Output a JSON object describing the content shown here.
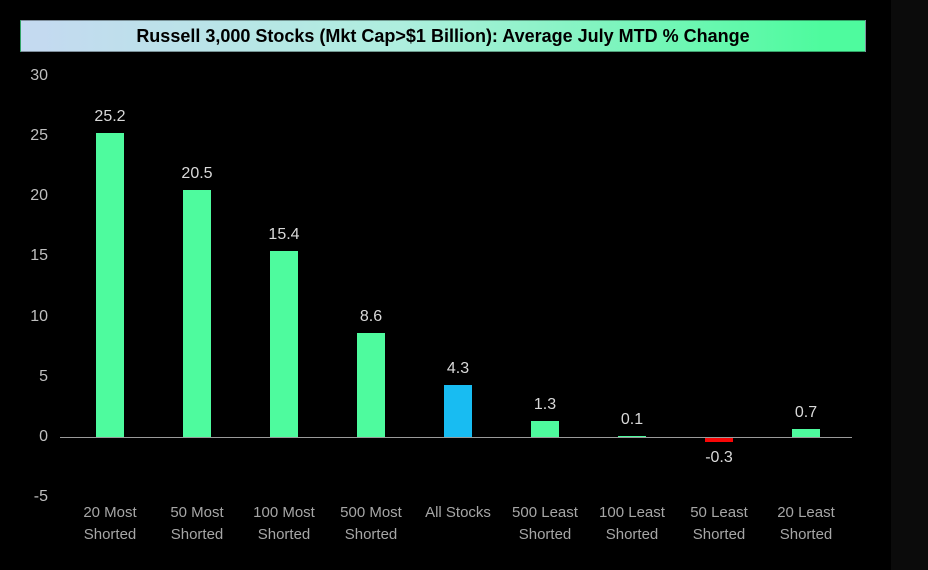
{
  "title": "Russell 3,000 Stocks (Mkt Cap>$1 Billion): Average July MTD % Change",
  "colors": {
    "background": "#000000",
    "slide_background": "#0b0b0b",
    "banner_left": "#c5d9f1",
    "banner_mid": "#aeeede",
    "banner_right": "#4efb9e",
    "title_text": "#000000",
    "green": "#4efb9e",
    "blue": "#18bcf2",
    "red": "#f90606",
    "axis_line": "#9a9a9a",
    "tick_text": "#bfbfbf",
    "value_text": "#d9d9d9",
    "category_text": "#a6a6a6"
  },
  "chart_data": {
    "type": "bar",
    "title": "Russell 3,000 Stocks (Mkt Cap>$1 Billion): Average July MTD % Change",
    "categories": [
      "20 Most Shorted",
      "50 Most Shorted",
      "100 Most Shorted",
      "500 Most Shorted",
      "All Stocks",
      "500 Least Shorted",
      "100 Least Shorted",
      "50 Least Shorted",
      "20 Least Shorted"
    ],
    "category_lines": [
      [
        "20 Most",
        "Shorted"
      ],
      [
        "50 Most",
        "Shorted"
      ],
      [
        "100 Most",
        "Shorted"
      ],
      [
        "500 Most",
        "Shorted"
      ],
      [
        "All Stocks"
      ],
      [
        "500 Least",
        "Shorted"
      ],
      [
        "100 Least",
        "Shorted"
      ],
      [
        "50 Least",
        "Shorted"
      ],
      [
        "20 Least",
        "Shorted"
      ]
    ],
    "values": [
      25.2,
      20.5,
      15.4,
      8.6,
      4.3,
      1.3,
      0.1,
      -0.3,
      0.7
    ],
    "value_labels": [
      "25.2",
      "20.5",
      "15.4",
      "8.6",
      "4.3",
      "1.3",
      "0.1",
      "-0.3",
      "0.7"
    ],
    "bar_colors": [
      "green",
      "green",
      "green",
      "green",
      "blue",
      "green",
      "green",
      "red",
      "green"
    ],
    "xlabel": "",
    "ylabel": "",
    "ylim": [
      -5,
      30
    ],
    "yticks": [
      30,
      25,
      20,
      15,
      10,
      5,
      0,
      -5
    ],
    "grid": "off",
    "legend": "none"
  }
}
